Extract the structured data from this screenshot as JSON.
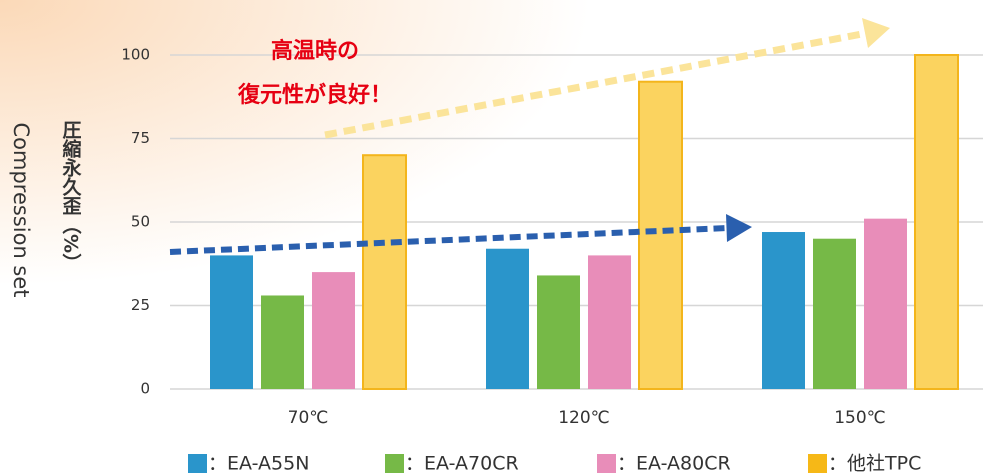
{
  "chart_data": {
    "type": "bar",
    "ylabel": "圧縮永久歪（%）",
    "ylabel_en": "Compression set",
    "annotation": [
      "高温時の",
      "復元性が良好！"
    ],
    "categories": [
      "70℃",
      "120℃",
      "150℃"
    ],
    "series": [
      {
        "name": "：EA-A55N",
        "color": "#2a95cb",
        "values": [
          40,
          42,
          47
        ]
      },
      {
        "name": "：EA-A70CR",
        "color": "#76b947",
        "values": [
          28,
          34,
          45
        ]
      },
      {
        "name": "：EA-A80CR",
        "color": "#e88db9",
        "values": [
          35,
          40,
          51
        ]
      },
      {
        "name": "：他社TPC",
        "color": "#fbd35f",
        "values": [
          70,
          92,
          100
        ]
      }
    ],
    "ylim": [
      0,
      100
    ],
    "yticks": [
      0,
      25,
      50,
      75,
      100
    ],
    "grid": true
  }
}
